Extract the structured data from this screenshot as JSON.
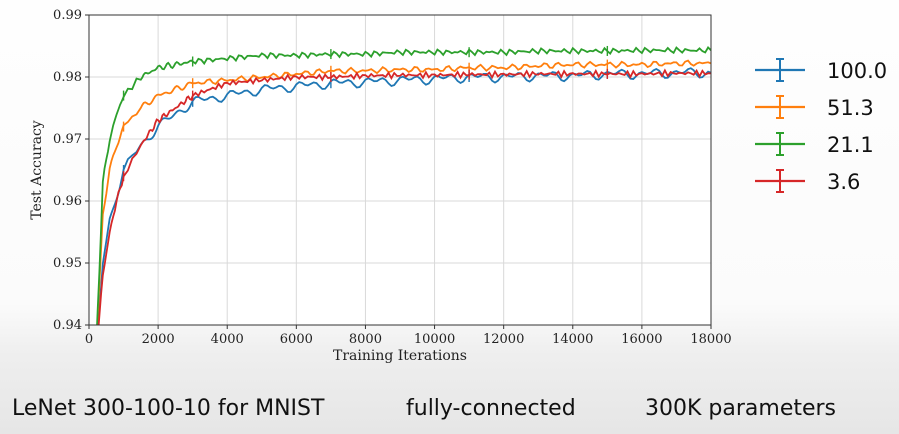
{
  "caption": {
    "model": "LeNet 300-100-10 for MNIST",
    "type": "fully-connected",
    "params": "300K parameters"
  },
  "chart_data": {
    "type": "line",
    "title": "",
    "xlabel": "Training Iterations",
    "ylabel": "Test Accuracy",
    "xlim": [
      0,
      18000
    ],
    "ylim": [
      0.94,
      0.99
    ],
    "xticks": [
      0,
      2000,
      4000,
      6000,
      8000,
      10000,
      12000,
      14000,
      16000,
      18000
    ],
    "xtick_labels": [
      "0",
      "2000",
      "4000",
      "6000",
      "8000",
      "10000",
      "12000",
      "14000",
      "16000",
      "18000"
    ],
    "yticks": [
      0.94,
      0.95,
      0.96,
      0.97,
      0.98,
      0.99
    ],
    "ytick_labels": [
      "0.94",
      "0.95",
      "0.96",
      "0.97",
      "0.98",
      "0.99"
    ],
    "grid": true,
    "legend_position": "right",
    "series": [
      {
        "name": "100.0",
        "color": "#1f77b4",
        "x": [
          200,
          400,
          600,
          800,
          1000,
          1500,
          2000,
          2500,
          3000,
          4000,
          5000,
          6000,
          7000,
          8000,
          9000,
          10000,
          11000,
          12000,
          13000,
          14000,
          15000,
          16000,
          17000,
          18000
        ],
        "y": [
          0.935,
          0.95,
          0.957,
          0.961,
          0.965,
          0.969,
          0.972,
          0.974,
          0.976,
          0.977,
          0.978,
          0.9785,
          0.979,
          0.9792,
          0.9795,
          0.9797,
          0.98,
          0.98,
          0.9802,
          0.9802,
          0.9805,
          0.9805,
          0.9807,
          0.9807
        ]
      },
      {
        "name": "51.3",
        "color": "#ff7f0e",
        "x": [
          200,
          400,
          600,
          800,
          1000,
          1500,
          2000,
          2500,
          3000,
          4000,
          5000,
          6000,
          7000,
          8000,
          9000,
          10000,
          11000,
          12000,
          13000,
          14000,
          15000,
          16000,
          17000,
          18000
        ],
        "y": [
          0.935,
          0.958,
          0.965,
          0.969,
          0.972,
          0.975,
          0.977,
          0.978,
          0.979,
          0.9795,
          0.98,
          0.9805,
          0.981,
          0.981,
          0.9812,
          0.9812,
          0.9815,
          0.9815,
          0.9818,
          0.982,
          0.982,
          0.982,
          0.9822,
          0.9822
        ]
      },
      {
        "name": "21.1",
        "color": "#2ca02c",
        "x": [
          200,
          400,
          600,
          800,
          1000,
          1500,
          2000,
          2500,
          3000,
          4000,
          5000,
          6000,
          7000,
          8000,
          9000,
          10000,
          11000,
          12000,
          13000,
          14000,
          15000,
          16000,
          17000,
          18000
        ],
        "y": [
          0.935,
          0.963,
          0.97,
          0.974,
          0.977,
          0.98,
          0.9815,
          0.982,
          0.9825,
          0.983,
          0.9835,
          0.9835,
          0.9837,
          0.9837,
          0.984,
          0.984,
          0.984,
          0.984,
          0.9842,
          0.9842,
          0.9842,
          0.9843,
          0.9843,
          0.9843
        ]
      },
      {
        "name": "3.6",
        "color": "#d62728",
        "x": [
          200,
          400,
          600,
          800,
          1000,
          1500,
          2000,
          2500,
          3000,
          4000,
          5000,
          6000,
          7000,
          8000,
          9000,
          10000,
          11000,
          12000,
          13000,
          14000,
          15000,
          16000,
          17000,
          18000
        ],
        "y": [
          0.935,
          0.948,
          0.955,
          0.96,
          0.964,
          0.969,
          0.973,
          0.975,
          0.977,
          0.979,
          0.9795,
          0.98,
          0.98,
          0.9802,
          0.9803,
          0.9803,
          0.9804,
          0.9804,
          0.9805,
          0.9805,
          0.9805,
          0.9805,
          0.9806,
          0.9806
        ]
      }
    ]
  }
}
